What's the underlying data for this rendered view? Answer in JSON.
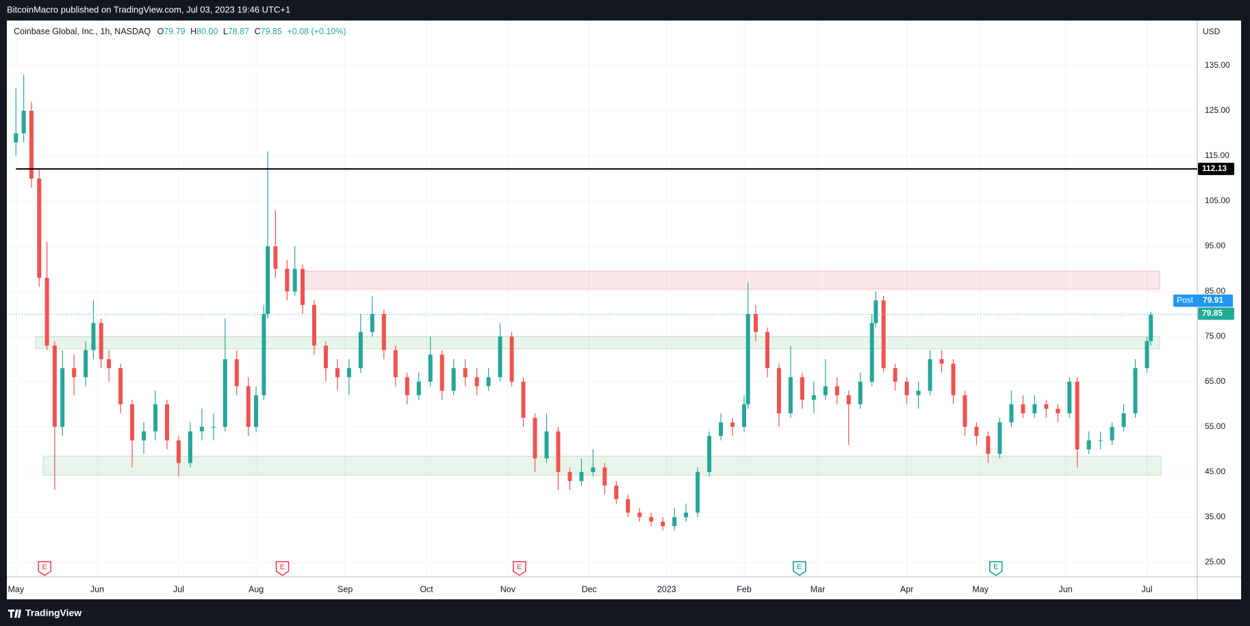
{
  "header": {
    "text": "BitcoinMacro published on TradingView.com, Jul 03, 2023 19:46 UTC+1"
  },
  "footer": {
    "logo": "TradingView"
  },
  "chart_data": {
    "type": "candlestick",
    "legend": {
      "name": "Coinbase Global, Inc., 1h, NASDAQ",
      "o_label": "O",
      "open": "79.79",
      "h_label": "H",
      "high": "80.00",
      "l_label": "L",
      "low": "78.87",
      "c_label": "C",
      "close": "79.85",
      "change": "+0.08 (+0.10%)"
    },
    "currency": "USD",
    "up_color": "#26a69a",
    "down_color": "#ef5350",
    "grid": true,
    "xlim": [
      -2,
      305
    ],
    "ylim": [
      21.8,
      145
    ],
    "xticks": [
      {
        "value": 0,
        "label": "May"
      },
      {
        "value": 21,
        "label": "Jun"
      },
      {
        "value": 42,
        "label": "Jul"
      },
      {
        "value": 62,
        "label": "Aug"
      },
      {
        "value": 85,
        "label": "Sep"
      },
      {
        "value": 106,
        "label": "Oct"
      },
      {
        "value": 127,
        "label": "Nov"
      },
      {
        "value": 148,
        "label": "Dec"
      },
      {
        "value": 168,
        "label": "2023"
      },
      {
        "value": 188,
        "label": "Feb"
      },
      {
        "value": 207,
        "label": "Mar"
      },
      {
        "value": 230,
        "label": "Apr"
      },
      {
        "value": 249,
        "label": "May"
      },
      {
        "value": 271,
        "label": "Jun"
      },
      {
        "value": 292,
        "label": "Jul"
      }
    ],
    "yticks": [
      {
        "value": 25,
        "label": "25.00"
      },
      {
        "value": 35,
        "label": "35.00"
      },
      {
        "value": 45,
        "label": "45.00"
      },
      {
        "value": 55,
        "label": "55.00"
      },
      {
        "value": 65,
        "label": "65.00"
      },
      {
        "value": 75,
        "label": "75.00"
      },
      {
        "value": 85,
        "label": "85.00"
      },
      {
        "value": 95,
        "label": "95.00"
      },
      {
        "value": 105,
        "label": "105.00"
      },
      {
        "value": 115,
        "label": "115.00"
      },
      {
        "value": 125,
        "label": "125.00"
      },
      {
        "value": 135,
        "label": "135.00"
      }
    ],
    "x": [
      0,
      2,
      4,
      6,
      8,
      10,
      12,
      15,
      18,
      20,
      22,
      24,
      27,
      30,
      33,
      36,
      39,
      42,
      45,
      48,
      51,
      54,
      57,
      60,
      62,
      64,
      65,
      67,
      70,
      72,
      74,
      77,
      80,
      83,
      86,
      89,
      92,
      95,
      98,
      101,
      104,
      107,
      110,
      113,
      116,
      119,
      122,
      125,
      128,
      131,
      134,
      137,
      140,
      143,
      146,
      149,
      152,
      155,
      158,
      161,
      164,
      167,
      170,
      173,
      176,
      179,
      182,
      185,
      188,
      189,
      191,
      194,
      197,
      200,
      203,
      206,
      209,
      212,
      215,
      218,
      221,
      222,
      224,
      227,
      230,
      233,
      236,
      239,
      242,
      245,
      248,
      251,
      254,
      257,
      260,
      263,
      266,
      269,
      272,
      274,
      277,
      280,
      283,
      286,
      289,
      292,
      293
    ],
    "open": [
      118,
      120,
      125,
      110,
      88,
      73,
      55,
      68,
      66,
      72,
      78,
      70,
      68,
      60,
      52,
      54,
      60,
      52,
      47,
      54,
      55,
      55,
      70,
      64,
      55,
      62,
      80,
      95,
      90,
      85,
      90,
      82,
      73,
      68,
      66,
      68,
      76,
      80,
      72,
      66,
      62,
      65,
      71,
      63,
      68,
      66,
      64,
      66,
      75,
      65,
      57,
      48,
      54,
      45,
      43,
      45,
      46,
      42,
      39,
      36,
      35,
      34,
      33,
      35,
      36,
      45,
      53,
      56,
      55,
      60,
      80,
      76,
      68,
      58,
      66,
      61,
      62,
      64,
      62,
      60,
      65,
      78,
      83,
      68,
      65,
      62,
      63,
      70,
      69,
      62,
      55,
      53,
      49,
      56,
      60,
      58,
      60,
      59,
      58,
      65,
      50,
      52,
      52,
      55,
      58,
      68,
      74
    ],
    "high": [
      130,
      133,
      127,
      112,
      96,
      74,
      72,
      71,
      74,
      83,
      79,
      72,
      69,
      61,
      56,
      63,
      61,
      53,
      56,
      59,
      58,
      79,
      72,
      66,
      64,
      82,
      116,
      103,
      92,
      95,
      91,
      83,
      74,
      70,
      70,
      80,
      84,
      81,
      73,
      67,
      67,
      75,
      72,
      70,
      70,
      68,
      68,
      78,
      76,
      66,
      58,
      58,
      55,
      46,
      48,
      50,
      47,
      43,
      40,
      37,
      36,
      35,
      37,
      38,
      46,
      54,
      58,
      57,
      62,
      87,
      82,
      77,
      69,
      73,
      67,
      65,
      70,
      66,
      63,
      67,
      80,
      85,
      84,
      69,
      66,
      65,
      72,
      72,
      70,
      63,
      56,
      54,
      57,
      63,
      62,
      62,
      61,
      60,
      66,
      66,
      54,
      54,
      56,
      60,
      70,
      75,
      80.5
    ],
    "low": [
      115,
      118,
      108,
      86,
      72,
      41,
      53,
      62,
      64,
      70,
      68,
      65,
      58,
      46,
      49,
      52,
      50,
      44,
      46,
      52,
      52,
      54,
      62,
      53,
      54,
      61,
      79,
      88,
      83,
      84,
      80,
      71,
      65,
      63,
      62,
      67,
      75,
      70,
      64,
      60,
      61,
      64,
      61,
      62,
      64,
      62,
      63,
      65,
      64,
      55,
      45,
      47,
      41,
      41,
      42,
      44,
      40,
      38,
      35,
      34,
      33,
      32,
      32,
      34,
      35,
      44,
      52,
      53,
      54,
      59,
      74,
      66,
      55,
      57,
      59,
      58,
      61,
      60,
      51,
      59,
      64,
      77,
      67,
      63,
      60,
      59,
      62,
      67,
      60,
      53,
      51,
      47,
      48,
      55,
      57,
      57,
      57,
      56,
      57,
      46,
      49,
      50,
      51,
      54,
      57,
      67,
      73
    ],
    "close": [
      120,
      125,
      110,
      88,
      73,
      55,
      68,
      66,
      72,
      78,
      70,
      68,
      60,
      52,
      54,
      60,
      52,
      47,
      54,
      55,
      55,
      70,
      64,
      55,
      62,
      80,
      95,
      90,
      85,
      90,
      82,
      73,
      68,
      66,
      68,
      76,
      80,
      72,
      66,
      62,
      65,
      71,
      63,
      68,
      66,
      64,
      66,
      75,
      65,
      57,
      48,
      54,
      45,
      43,
      45,
      46,
      42,
      39,
      36,
      35,
      34,
      33,
      35,
      36,
      45,
      53,
      56,
      55,
      60,
      80,
      76,
      68,
      58,
      66,
      61,
      62,
      64,
      62,
      60,
      65,
      78,
      83,
      68,
      65,
      62,
      63,
      70,
      69,
      62,
      55,
      53,
      49,
      56,
      60,
      58,
      60,
      59,
      58,
      65,
      50,
      52,
      52,
      55,
      58,
      68,
      74,
      79.85
    ],
    "last_color": "#22ab94",
    "levels": [
      {
        "value": 112.13,
        "label": "112.13",
        "color": "#000000"
      }
    ],
    "post": {
      "label": "Post",
      "value": 79.91,
      "value_label": "79.91",
      "color": "#2196f3"
    },
    "zones": [
      {
        "low": 85.5,
        "high": 89.5,
        "x0": 74,
        "x1": 295.3,
        "color": "#f23645"
      },
      {
        "low": 72.3,
        "high": 75,
        "x0": 5,
        "x1": 295.3,
        "color": "#4caf50"
      },
      {
        "low": 44.3,
        "high": 48.5,
        "x0": 7,
        "x1": 295.7,
        "color": "#4caf50"
      }
    ],
    "earnings": [
      {
        "x": 7.4,
        "label": "E",
        "color": "#f23645"
      },
      {
        "x": 68.8,
        "label": "E",
        "color": "#f23645"
      },
      {
        "x": 130,
        "label": "E",
        "color": "#f23645"
      },
      {
        "x": 202.3,
        "label": "E",
        "color": "#089981"
      },
      {
        "x": 253,
        "label": "E",
        "color": "#089981"
      }
    ]
  }
}
